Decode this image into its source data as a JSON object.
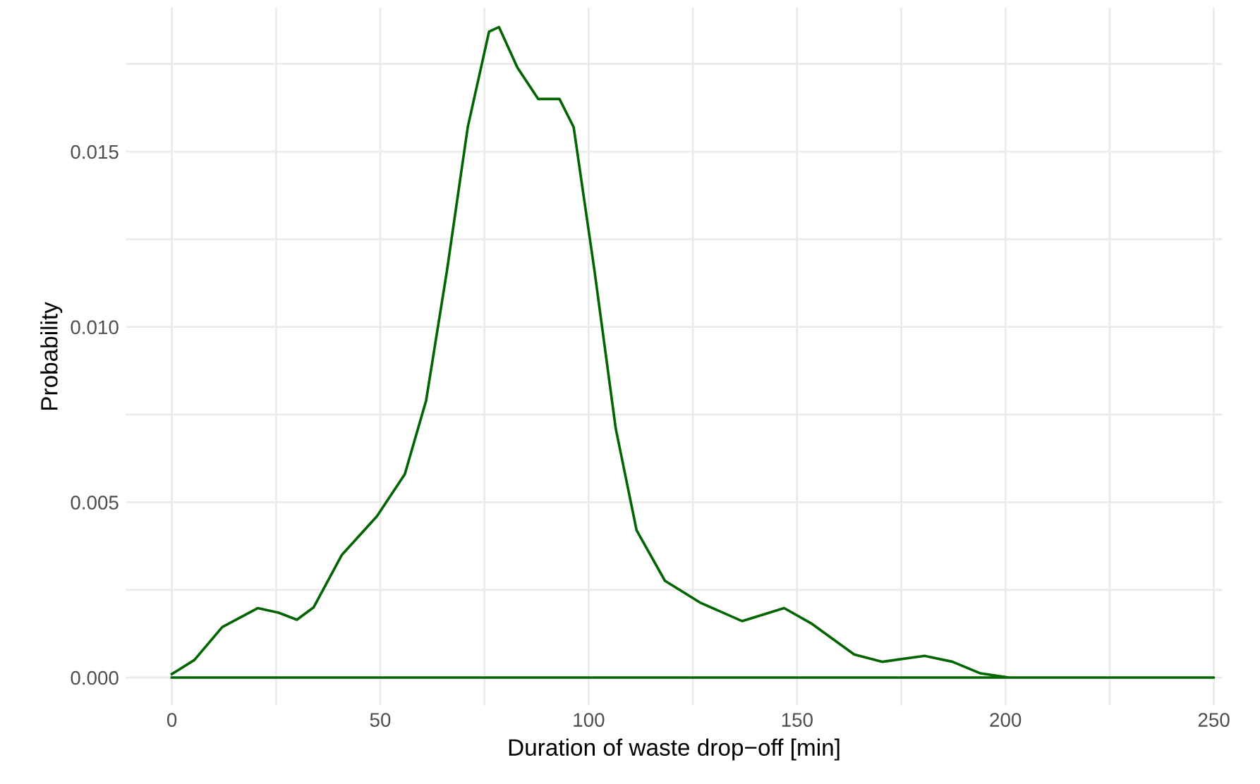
{
  "chart_data": {
    "type": "line",
    "xlabel": "Duration of waste drop−off [min]",
    "ylabel": "Probability",
    "xlim": [
      -11,
      252
    ],
    "ylim": [
      -0.0008,
      0.0191
    ],
    "xticks": [
      0,
      {
        "value": 25,
        "label": null
      },
      50,
      {
        "value": 75,
        "label": null
      },
      100,
      {
        "value": 125,
        "label": null
      },
      150,
      {
        "value": 175,
        "label": null
      },
      200,
      {
        "value": 225,
        "label": null
      },
      250
    ],
    "yticks": [
      {
        "value": 0,
        "label": "0.000"
      },
      {
        "value": 0.0025,
        "label": null
      },
      0.005,
      {
        "value": 0.0075,
        "label": null
      },
      {
        "value": 0.01,
        "label": "0.010"
      },
      {
        "value": 0.0125,
        "label": null
      },
      0.015,
      {
        "value": 0.0175,
        "label": null
      }
    ],
    "grid": true,
    "legend": false,
    "marker": "none",
    "line_style": "solid",
    "series": [
      {
        "color": "#006400",
        "x": [
          0,
          5.4,
          12.1,
          20.6,
          25.6,
          30,
          34,
          40.8,
          49.2,
          55.9,
          61,
          66,
          71,
          76.1,
          78.5,
          82.9,
          87.9,
          93,
          96.4,
          101.4,
          106.5,
          111.5,
          118.3,
          126.7,
          136.8,
          146.9,
          153.6,
          163.7,
          170.5,
          180.6,
          187.3,
          194,
          200.8,
          250,
          0
        ],
        "values": [
          0.0001,
          0.0005,
          0.00144,
          0.00198,
          0.00185,
          0.00165,
          0.002,
          0.0035,
          0.0046,
          0.0058,
          0.0079,
          0.0116,
          0.0157,
          0.01842,
          0.01855,
          0.0174,
          0.0165,
          0.0165,
          0.0157,
          0.0116,
          0.0071,
          0.0042,
          0.00276,
          0.00214,
          0.00161,
          0.00198,
          0.00153,
          0.00066,
          0.00045,
          0.00062,
          0.00045,
          0.00012,
          0,
          0,
          0
        ]
      }
    ]
  }
}
